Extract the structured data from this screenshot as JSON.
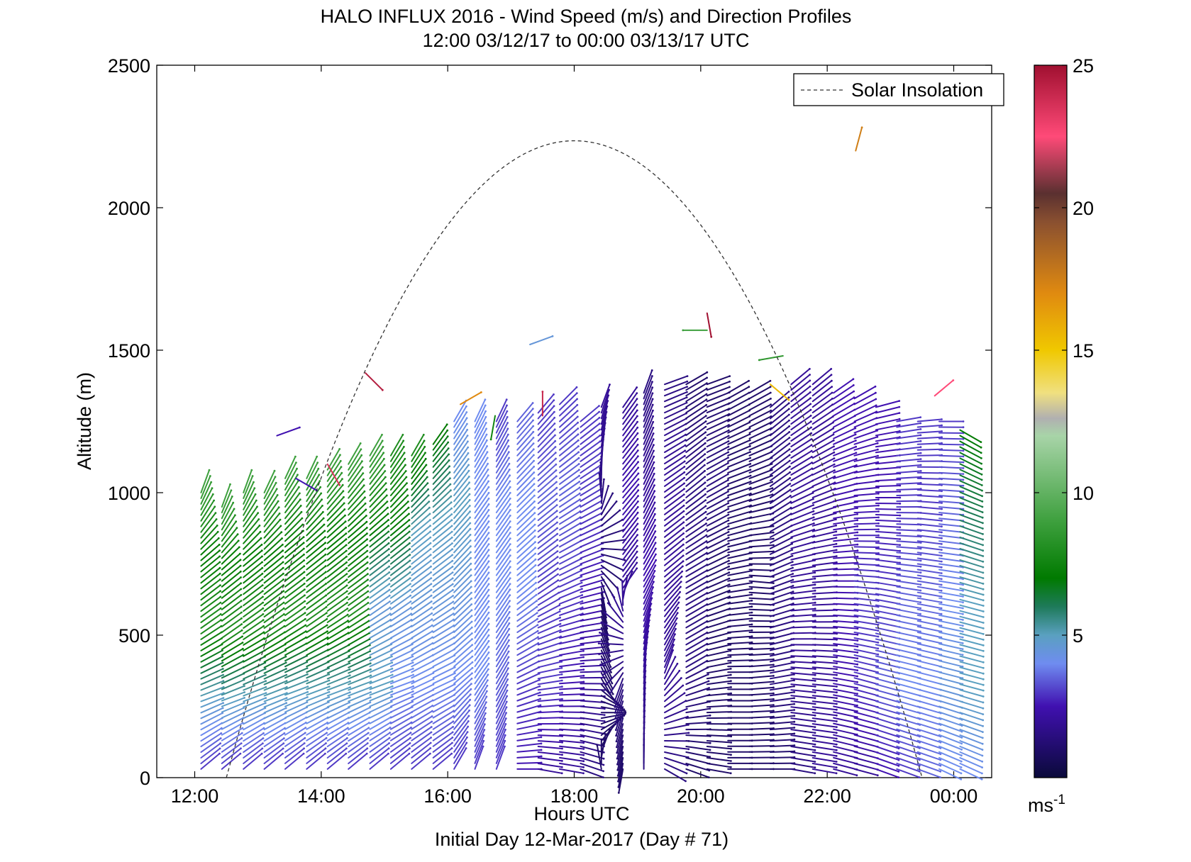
{
  "chart_data": {
    "type": "wind-barbs",
    "title": "HALO INFLUX 2016 - Wind Speed (m/s) and Direction Profiles",
    "subtitle": "12:00 03/12/17 to 00:00 03/13/17  UTC",
    "xlabel": "Hours UTC",
    "ylabel": "Altitude (m)",
    "footer": "Initial Day 12-Mar-2017 (Day # 71)",
    "x_ticks": [
      "12:00",
      "14:00",
      "16:00",
      "18:00",
      "20:00",
      "22:00",
      "00:00"
    ],
    "x_tick_hours": [
      12,
      14,
      16,
      18,
      20,
      22,
      24
    ],
    "xlim_hours": [
      11.4,
      24.6
    ],
    "y_ticks": [
      0,
      500,
      1000,
      1500,
      2000,
      2500
    ],
    "ylim": [
      0,
      2500
    ],
    "legend": {
      "entries": [
        "Solar Insolation"
      ],
      "placement": "top-right",
      "line_style": "dashed"
    },
    "solar_insolation": {
      "start_hour": 12.5,
      "peak_hour": 18.0,
      "peak_altitude": 2235,
      "end_hour": 23.5
    },
    "colorbar": {
      "unit_base": "ms",
      "unit_exp": "-1",
      "ticks": [
        5,
        10,
        15,
        20,
        25
      ],
      "vmin": 0,
      "vmax": 25,
      "stops": [
        {
          "v": 0,
          "c": "#0a0a3a"
        },
        {
          "v": 2.5,
          "c": "#4010b0"
        },
        {
          "v": 4,
          "c": "#6f8cf0"
        },
        {
          "v": 5,
          "c": "#5aa0c0"
        },
        {
          "v": 6,
          "c": "#1e7a5a"
        },
        {
          "v": 7,
          "c": "#007a00"
        },
        {
          "v": 9,
          "c": "#3ea03e"
        },
        {
          "v": 12,
          "c": "#a8d4a8"
        },
        {
          "v": 12.6,
          "c": "#b0b0b0"
        },
        {
          "v": 13.5,
          "c": "#f0e080"
        },
        {
          "v": 15,
          "c": "#f0c800"
        },
        {
          "v": 17,
          "c": "#e08a10"
        },
        {
          "v": 19.5,
          "c": "#8a5030"
        },
        {
          "v": 20.5,
          "c": "#5a3030"
        },
        {
          "v": 22.5,
          "c": "#ff4a78"
        },
        {
          "v": 25,
          "c": "#a01030"
        }
      ]
    },
    "profiles": [
      {
        "t": 12.1,
        "top": 1000,
        "spd": [
          3,
          5,
          8,
          7,
          9
        ],
        "dir": [
          230,
          250,
          235,
          230,
          200
        ]
      },
      {
        "t": 12.43,
        "top": 950,
        "spd": [
          3,
          5,
          8,
          7,
          9
        ],
        "dir": [
          230,
          250,
          235,
          230,
          200
        ]
      },
      {
        "t": 12.77,
        "top": 1000,
        "spd": [
          3,
          5,
          8,
          7,
          9
        ],
        "dir": [
          230,
          250,
          235,
          230,
          200
        ]
      },
      {
        "t": 13.1,
        "top": 1000,
        "spd": [
          3,
          5,
          8,
          7,
          9
        ],
        "dir": [
          230,
          250,
          235,
          230,
          205
        ]
      },
      {
        "t": 13.43,
        "top": 1050,
        "spd": [
          3,
          5,
          8,
          7,
          9
        ],
        "dir": [
          230,
          250,
          235,
          230,
          205
        ]
      },
      {
        "t": 13.77,
        "top": 1050,
        "spd": [
          3,
          5,
          8,
          7,
          9
        ],
        "dir": [
          230,
          250,
          235,
          230,
          205
        ]
      },
      {
        "t": 14.1,
        "top": 1080,
        "spd": [
          3,
          5,
          8,
          7,
          9
        ],
        "dir": [
          230,
          250,
          235,
          230,
          210
        ]
      },
      {
        "t": 14.43,
        "top": 1100,
        "spd": [
          3,
          5,
          8,
          7,
          9
        ],
        "dir": [
          230,
          250,
          235,
          230,
          210
        ]
      },
      {
        "t": 14.77,
        "top": 1130,
        "spd": [
          3,
          5,
          4.5,
          7,
          9
        ],
        "dir": [
          230,
          250,
          235,
          230,
          210
        ]
      },
      {
        "t": 15.1,
        "top": 1130,
        "spd": [
          3,
          4,
          4.5,
          7,
          8
        ],
        "dir": [
          230,
          250,
          235,
          230,
          210
        ]
      },
      {
        "t": 15.43,
        "top": 1130,
        "spd": [
          3,
          4,
          4.5,
          5,
          8
        ],
        "dir": [
          230,
          245,
          235,
          230,
          210
        ]
      },
      {
        "t": 15.77,
        "top": 1170,
        "spd": [
          3,
          4,
          4.5,
          5,
          7
        ],
        "dir": [
          230,
          245,
          235,
          230,
          215
        ]
      },
      {
        "t": 16.1,
        "top": 1250,
        "spd": [
          3,
          4,
          4.5,
          5,
          4
        ],
        "dir": [
          210,
          230,
          225,
          220,
          210
        ]
      },
      {
        "t": 16.43,
        "top": 1250,
        "spd": [
          3,
          4,
          4,
          4,
          4
        ],
        "dir": [
          200,
          215,
          215,
          215,
          205
        ]
      },
      {
        "t": 16.77,
        "top": 1250,
        "spd": [
          3,
          3.5,
          4,
          4,
          3
        ],
        "dir": [
          200,
          210,
          215,
          215,
          205
        ]
      },
      {
        "t": 17.1,
        "top": 1250,
        "spd": [
          2.5,
          3,
          4,
          4,
          3.5
        ],
        "dir": [
          270,
          245,
          230,
          225,
          220
        ]
      },
      {
        "t": 17.43,
        "top": 1280,
        "spd": [
          2,
          3,
          3,
          3.5,
          3
        ],
        "dir": [
          280,
          260,
          235,
          230,
          220
        ]
      },
      {
        "t": 17.77,
        "top": 1310,
        "spd": [
          2,
          2.5,
          3,
          3.5,
          3
        ],
        "dir": [
          280,
          265,
          245,
          235,
          225
        ]
      },
      {
        "t": 18.1,
        "top": 1250,
        "spd": [
          1.5,
          2,
          2.5,
          3,
          3
        ],
        "dir": [
          290,
          270,
          255,
          240,
          230
        ]
      },
      {
        "t": 18.43,
        "top": 1300,
        "spd": [
          1,
          1,
          1,
          1.5,
          2
        ],
        "dir": [
          170,
          330,
          350,
          175,
          200
        ]
      },
      {
        "t": 18.77,
        "top": 1300,
        "spd": [
          1,
          1.5,
          2,
          2.5,
          2
        ],
        "dir": [
          10,
          20,
          215,
          220,
          215
        ]
      },
      {
        "t": 19.1,
        "top": 1350,
        "spd": [
          1.5,
          2,
          2.5,
          2,
          1.5
        ],
        "dir": [
          180,
          185,
          210,
          205,
          200
        ]
      },
      {
        "t": 19.43,
        "top": 1380,
        "spd": [
          1.5,
          2,
          2,
          2,
          1.5
        ],
        "dir": [
          300,
          200,
          230,
          235,
          250
        ]
      },
      {
        "t": 19.77,
        "top": 1380,
        "spd": [
          1,
          1.5,
          1.5,
          1.5,
          1
        ],
        "dir": [
          290,
          240,
          240,
          230,
          240
        ]
      },
      {
        "t": 20.1,
        "top": 1380,
        "spd": [
          1,
          1,
          1,
          1.5,
          1
        ],
        "dir": [
          280,
          260,
          245,
          240,
          250
        ]
      },
      {
        "t": 20.43,
        "top": 1350,
        "spd": [
          1,
          1,
          1,
          1,
          1
        ],
        "dir": [
          270,
          270,
          260,
          250,
          240
        ]
      },
      {
        "t": 20.77,
        "top": 1350,
        "spd": [
          1,
          1,
          1,
          1,
          1
        ],
        "dir": [
          270,
          265,
          275,
          250,
          240
        ]
      },
      {
        "t": 21.1,
        "top": 1300,
        "spd": [
          1,
          1.5,
          1.5,
          1.5,
          1.5
        ],
        "dir": [
          270,
          260,
          250,
          235,
          230
        ]
      },
      {
        "t": 21.43,
        "top": 1380,
        "spd": [
          1.5,
          2,
          2,
          2,
          2
        ],
        "dir": [
          280,
          275,
          260,
          240,
          230
        ]
      },
      {
        "t": 21.77,
        "top": 1380,
        "spd": [
          2,
          2,
          2,
          2,
          2
        ],
        "dir": [
          280,
          275,
          265,
          245,
          230
        ]
      },
      {
        "t": 22.1,
        "top": 1350,
        "spd": [
          2,
          2.5,
          2.5,
          2.5,
          2.5
        ],
        "dir": [
          285,
          280,
          270,
          255,
          235
        ]
      },
      {
        "t": 22.43,
        "top": 1330,
        "spd": [
          2,
          3,
          3,
          2.5,
          2.5
        ],
        "dir": [
          285,
          285,
          275,
          265,
          240
        ]
      },
      {
        "t": 22.77,
        "top": 1300,
        "spd": [
          2.5,
          3.5,
          3,
          2.5,
          2.5
        ],
        "dir": [
          290,
          285,
          280,
          270,
          255
        ]
      },
      {
        "t": 23.1,
        "top": 1250,
        "spd": [
          3,
          4,
          3.5,
          3,
          3
        ],
        "dir": [
          290,
          285,
          280,
          270,
          260
        ]
      },
      {
        "t": 23.43,
        "top": 1250,
        "spd": [
          3.5,
          4,
          3.5,
          3,
          3
        ],
        "dir": [
          290,
          285,
          280,
          275,
          265
        ]
      },
      {
        "t": 23.77,
        "top": 1250,
        "spd": [
          4,
          4.5,
          4,
          3.5,
          3
        ],
        "dir": [
          295,
          285,
          280,
          275,
          270
        ]
      },
      {
        "t": 24.1,
        "top": 1220,
        "spd": [
          4,
          5,
          5,
          6,
          7
        ],
        "dir": [
          295,
          285,
          285,
          290,
          300
        ]
      }
    ],
    "isolated_vectors": [
      {
        "t": 13.3,
        "alt": 1200,
        "spd": 2.5,
        "dir": 250
      },
      {
        "t": 13.6,
        "alt": 1050,
        "spd": 2.5,
        "dir": 300
      },
      {
        "t": 14.1,
        "alt": 1100,
        "spd": 23.5,
        "dir": 330
      },
      {
        "t": 14.7,
        "alt": 1420,
        "spd": 24.5,
        "dir": 315
      },
      {
        "t": 16.2,
        "alt": 1310,
        "spd": 17,
        "dir": 240
      },
      {
        "t": 16.75,
        "alt": 1270,
        "spd": 7.5,
        "dir": 10
      },
      {
        "t": 17.3,
        "alt": 1520,
        "spd": 4.5,
        "dir": 250
      },
      {
        "t": 17.5,
        "alt": 1270,
        "spd": 24,
        "dir": 180
      },
      {
        "t": 20.1,
        "alt": 1570,
        "spd": 9,
        "dir": 90
      },
      {
        "t": 20.1,
        "alt": 1630,
        "spd": 25,
        "dir": 350
      },
      {
        "t": 21.1,
        "alt": 1380,
        "spd": 15.5,
        "dir": 310
      },
      {
        "t": 21.3,
        "alt": 1480,
        "spd": 8.5,
        "dir": 80
      },
      {
        "t": 22.45,
        "alt": 2200,
        "spd": 17.5,
        "dir": 195
      },
      {
        "t": 23.7,
        "alt": 1340,
        "spd": 22.5,
        "dir": 230
      }
    ]
  }
}
